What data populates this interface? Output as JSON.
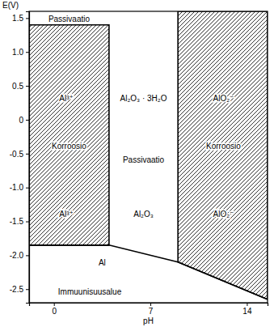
{
  "chart_data": {
    "type": "area",
    "y_label": "E(V)",
    "x_label": "pH",
    "xlim": [
      -1.8,
      15.5
    ],
    "xticks": [
      0,
      7,
      14
    ],
    "ylim": [
      -2.7,
      1.6
    ],
    "yticks": [
      {
        "value": 1.5,
        "label": "1.5"
      },
      {
        "value": 1.0,
        "label": "1.0"
      },
      0.5,
      0,
      -0.5,
      {
        "value": -1.0,
        "label": "-1.0"
      },
      -1.5,
      {
        "value": -2.0,
        "label": "-2.0"
      },
      -2.5
    ],
    "series": [
      {
        "type": "area",
        "color": "#000000",
        "x": [
          -1.8,
          4,
          4,
          -1.8
        ],
        "values": [
          1.4,
          1.4,
          -1.85,
          -1.85
        ]
      },
      {
        "type": "area",
        "color": "#000000",
        "x": [
          9,
          15.5,
          15.5,
          9
        ],
        "values": [
          1.6,
          1.6,
          -2.65,
          -2.1
        ]
      },
      {
        "type": "line",
        "color": "#000000",
        "x": [
          -1.8,
          4,
          9,
          15.5
        ],
        "values": [
          -1.85,
          -1.85,
          -2.1,
          -2.65
        ]
      }
    ],
    "annotations": [
      {
        "text": "Passivaatio",
        "x": 1.1,
        "y": 1.48
      },
      {
        "text": "Al³⁺",
        "x": 0.9,
        "y": 0.3
      },
      {
        "text": "Korroosio",
        "x": 1.1,
        "y": -0.4
      },
      {
        "text": "Al³⁺",
        "x": 0.9,
        "y": -1.4
      },
      {
        "text": "Al₂O₃ · 3H₂O",
        "x": 6.5,
        "y": 0.3
      },
      {
        "text": "Passivaatio",
        "x": 6.5,
        "y": -0.6
      },
      {
        "text": "Al₂O₃",
        "x": 6.5,
        "y": -1.4
      },
      {
        "text": "AlO₂⁻",
        "x": 12.3,
        "y": 0.3
      },
      {
        "text": "Korroosio",
        "x": 12.3,
        "y": -0.4
      },
      {
        "text": "AlO₂⁻",
        "x": 12.3,
        "y": -1.4
      },
      {
        "text": "Al",
        "x": 3.5,
        "y": -2.12
      },
      {
        "text": "Immuunisuusalue",
        "x": 2.6,
        "y": -2.55
      }
    ]
  }
}
